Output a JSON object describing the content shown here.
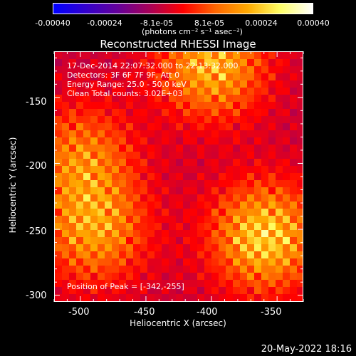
{
  "colorbar": {
    "tick_labels": [
      "-0.00040",
      "-0.00024",
      "-8.1e-05",
      "8.1e-05",
      "0.00024",
      "0.00040"
    ],
    "units": "(photons cm⁻² s⁻¹ asec⁻²)",
    "colors": [
      "#0000ff",
      "#3300cc",
      "#660099",
      "#aa0055",
      "#ff0000",
      "#ff6600",
      "#ffaa00",
      "#ffff66",
      "#ffffff"
    ]
  },
  "header": {
    "time_range": "17-Dec-2014 22:07:32.000 to 22:13:32.000",
    "detectors": "Detectors: 3F 6F 7F 9F, Att 0",
    "energy_range": "Energy Range: 25.0 - 50.0 keV",
    "clean_counts": "Clean     Total counts: 3.02E+03"
  },
  "peak_text": "Position of Peak = [-342,-255]",
  "date_stamp": "20-May-2022 18:16",
  "chart_data": {
    "type": "heatmap",
    "title": "Reconstructed RHESSI Image",
    "xlabel": "Heliocentric X (arcsec)",
    "ylabel": "Heliocentric Y (arcsec)",
    "xlim": [
      -520,
      -330
    ],
    "ylim": [
      -305,
      -115
    ],
    "x_ticks": [
      -500,
      -450,
      -400,
      -350
    ],
    "y_ticks": [
      -300,
      -250,
      -200,
      -150
    ],
    "x_tick_labels": [
      "-500",
      "-450",
      "-400",
      "-350"
    ],
    "y_tick_labels": [
      "-300",
      "-250",
      "-200",
      "-150"
    ],
    "color_range": [
      -0.0004,
      0.0004
    ],
    "peak_position": [
      -342,
      -255
    ],
    "bright_regions": [
      {
        "x": -360,
        "y": -255,
        "value": 0.0004
      },
      {
        "x": -400,
        "y": -125,
        "value": 0.00035
      },
      {
        "x": -490,
        "y": -250,
        "value": 0.0003
      },
      {
        "x": -500,
        "y": -195,
        "value": 0.00025
      }
    ]
  }
}
